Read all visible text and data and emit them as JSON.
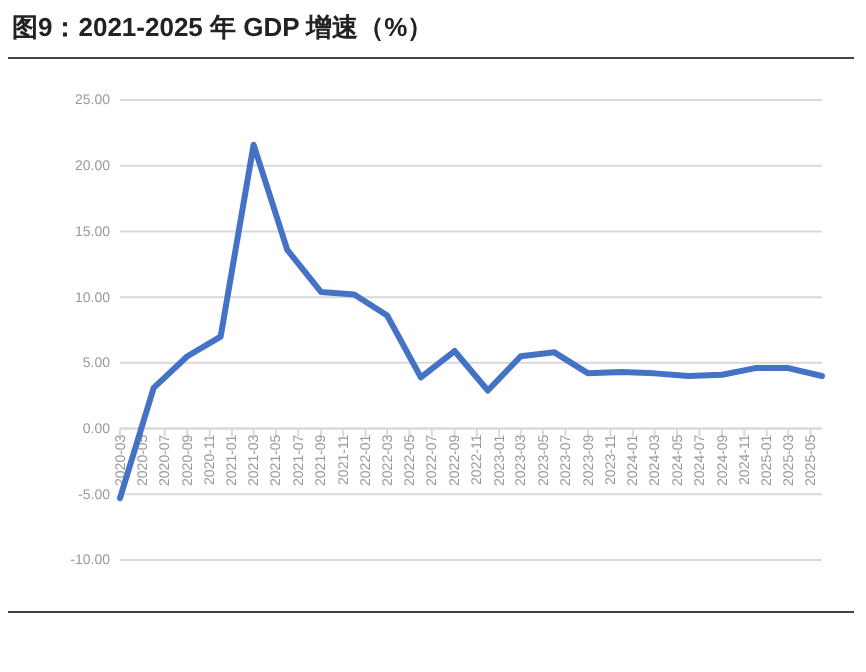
{
  "chart_data": {
    "type": "line",
    "title": "图9：2021-2025 年 GDP 增速（%）",
    "x": [
      "2020-03",
      "2020-06",
      "2020-09",
      "2020-12",
      "2021-03",
      "2021-06",
      "2021-09",
      "2021-12",
      "2022-03",
      "2022-06",
      "2022-09",
      "2022-12",
      "2023-03",
      "2023-06",
      "2023-09",
      "2023-12",
      "2024-03",
      "2024-06",
      "2024-09",
      "2024-12",
      "2025-03",
      "2025-06"
    ],
    "series": [
      {
        "color": "#4472c4",
        "values": [
          -5.3,
          3.1,
          5.5,
          7.0,
          21.6,
          13.6,
          10.4,
          10.2,
          8.6,
          3.9,
          5.9,
          2.9,
          5.5,
          5.8,
          4.2,
          4.3,
          4.2,
          4.0,
          4.1,
          4.6,
          4.6,
          4.0
        ]
      }
    ],
    "xlim": [
      "2020-03",
      "2025-06"
    ],
    "xticks": [
      "2020-03",
      "2020-05",
      "2020-07",
      "2020-09",
      "2020-11",
      "2021-01",
      "2021-03",
      "2021-05",
      "2021-07",
      "2021-09",
      "2021-11",
      "2022-01",
      "2022-03",
      "2022-05",
      "2022-07",
      "2022-09",
      "2022-11",
      "2023-01",
      "2023-03",
      "2023-05",
      "2023-07",
      "2023-09",
      "2023-11",
      "2024-01",
      "2024-03",
      "2024-05",
      "2024-07",
      "2024-09",
      "2024-11",
      "2025-01",
      "2025-03",
      "2025-05"
    ],
    "ylim": [
      -10,
      25
    ],
    "yticks": [
      {
        "value": -10,
        "label": "-10.00"
      },
      {
        "value": -5,
        "label": "-5.00"
      },
      {
        "value": 0,
        "label": "0.00"
      },
      {
        "value": 5,
        "label": "5.00"
      },
      {
        "value": 10,
        "label": "10.00"
      },
      {
        "value": 15,
        "label": "15.00"
      },
      {
        "value": 20,
        "label": "20.00"
      },
      {
        "value": 25,
        "label": "25.00"
      }
    ],
    "grid": "y",
    "marker": "none",
    "line_style": "solid"
  }
}
